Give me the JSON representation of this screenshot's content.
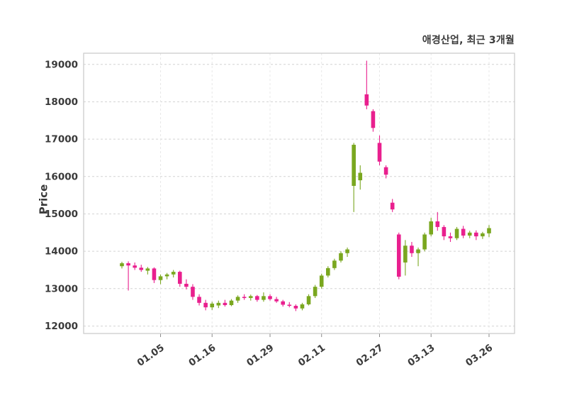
{
  "chart_data": {
    "type": "candlestick",
    "title": "애경산업, 최근 3개월",
    "ylabel": "Price",
    "xlabel": "",
    "ylim": [
      12000,
      19000
    ],
    "grid": "dashed",
    "y_ticks": [
      12000,
      13000,
      14000,
      15000,
      16000,
      17000,
      18000,
      19000
    ],
    "x_ticks": [
      {
        "label": "01.05",
        "index": 6
      },
      {
        "label": "01.16",
        "index": 14
      },
      {
        "label": "01.29",
        "index": 23
      },
      {
        "label": "02.11",
        "index": 31
      },
      {
        "label": "02.27",
        "index": 40
      },
      {
        "label": "03.13",
        "index": 48
      },
      {
        "label": "03.26",
        "index": 57
      }
    ],
    "colors": {
      "up": "#7aa71f",
      "down": "#e91f8e",
      "grid": "#d4d4d4",
      "vgrid": "#e8e8e8",
      "axis_text": "#3a3a3a",
      "border": "#c9c9c9"
    },
    "candles": [
      {
        "date": "12.27",
        "open": 13600,
        "high": 13720,
        "low": 13540,
        "close": 13680
      },
      {
        "date": "12.28",
        "open": 13680,
        "high": 13730,
        "low": 12950,
        "close": 13620
      },
      {
        "date": "12.29",
        "open": 13620,
        "high": 13700,
        "low": 13500,
        "close": 13560
      },
      {
        "date": "01.02",
        "open": 13560,
        "high": 13640,
        "low": 13450,
        "close": 13500
      },
      {
        "date": "01.03",
        "open": 13480,
        "high": 13580,
        "low": 13380,
        "close": 13540
      },
      {
        "date": "01.04",
        "open": 13540,
        "high": 13570,
        "low": 13150,
        "close": 13230
      },
      {
        "date": "01.05",
        "open": 13230,
        "high": 13380,
        "low": 13120,
        "close": 13330
      },
      {
        "date": "01.06",
        "open": 13330,
        "high": 13420,
        "low": 13250,
        "close": 13380
      },
      {
        "date": "01.09",
        "open": 13380,
        "high": 13500,
        "low": 13300,
        "close": 13450
      },
      {
        "date": "01.10",
        "open": 13450,
        "high": 13480,
        "low": 13050,
        "close": 13130
      },
      {
        "date": "01.11",
        "open": 13130,
        "high": 13250,
        "low": 12980,
        "close": 13050
      },
      {
        "date": "01.12",
        "open": 13050,
        "high": 13120,
        "low": 12700,
        "close": 12780
      },
      {
        "date": "01.13",
        "open": 12780,
        "high": 12850,
        "low": 12550,
        "close": 12620
      },
      {
        "date": "01.15",
        "open": 12620,
        "high": 12700,
        "low": 12420,
        "close": 12500
      },
      {
        "date": "01.16",
        "open": 12500,
        "high": 12650,
        "low": 12430,
        "close": 12600
      },
      {
        "date": "01.17",
        "open": 12550,
        "high": 12680,
        "low": 12480,
        "close": 12620
      },
      {
        "date": "01.18",
        "open": 12620,
        "high": 12700,
        "low": 12520,
        "close": 12560
      },
      {
        "date": "01.19",
        "open": 12560,
        "high": 12720,
        "low": 12530,
        "close": 12680
      },
      {
        "date": "01.22",
        "open": 12680,
        "high": 12820,
        "low": 12620,
        "close": 12780
      },
      {
        "date": "01.23",
        "open": 12780,
        "high": 12850,
        "low": 12700,
        "close": 12750
      },
      {
        "date": "01.24",
        "open": 12750,
        "high": 12840,
        "low": 12680,
        "close": 12800
      },
      {
        "date": "01.25",
        "open": 12800,
        "high": 12830,
        "low": 12650,
        "close": 12700
      },
      {
        "date": "01.26",
        "open": 12700,
        "high": 12900,
        "low": 12650,
        "close": 12800
      },
      {
        "date": "01.29",
        "open": 12800,
        "high": 12850,
        "low": 12680,
        "close": 12720
      },
      {
        "date": "01.30",
        "open": 12720,
        "high": 12780,
        "low": 12620,
        "close": 12660
      },
      {
        "date": "01.31",
        "open": 12660,
        "high": 12700,
        "low": 12520,
        "close": 12570
      },
      {
        "date": "02.01",
        "open": 12570,
        "high": 12640,
        "low": 12500,
        "close": 12540
      },
      {
        "date": "02.03",
        "open": 12540,
        "high": 12580,
        "low": 12400,
        "close": 12470
      },
      {
        "date": "02.06",
        "open": 12470,
        "high": 12620,
        "low": 12420,
        "close": 12580
      },
      {
        "date": "02.08",
        "open": 12580,
        "high": 12850,
        "low": 12550,
        "close": 12800
      },
      {
        "date": "02.09",
        "open": 12800,
        "high": 13100,
        "low": 12750,
        "close": 13050
      },
      {
        "date": "02.11",
        "open": 13050,
        "high": 13400,
        "low": 13000,
        "close": 13350
      },
      {
        "date": "02.14",
        "open": 13350,
        "high": 13600,
        "low": 13300,
        "close": 13550
      },
      {
        "date": "02.15",
        "open": 13550,
        "high": 13800,
        "low": 13500,
        "close": 13750
      },
      {
        "date": "02.16",
        "open": 13750,
        "high": 14000,
        "low": 13700,
        "close": 13950
      },
      {
        "date": "02.17",
        "open": 13950,
        "high": 14100,
        "low": 13850,
        "close": 14050
      },
      {
        "date": "02.20",
        "open": 15750,
        "high": 16900,
        "low": 15050,
        "close": 16850
      },
      {
        "date": "02.22",
        "open": 15900,
        "high": 16300,
        "low": 15650,
        "close": 16100
      },
      {
        "date": "02.23",
        "open": 18200,
        "high": 19100,
        "low": 17800,
        "close": 17900
      },
      {
        "date": "02.24",
        "open": 17750,
        "high": 17800,
        "low": 17200,
        "close": 17300
      },
      {
        "date": "02.27",
        "open": 16900,
        "high": 17100,
        "low": 16300,
        "close": 16400
      },
      {
        "date": "02.28",
        "open": 16250,
        "high": 16300,
        "low": 15950,
        "close": 16050
      },
      {
        "date": "03.02",
        "open": 15300,
        "high": 15400,
        "low": 15050,
        "close": 15120
      },
      {
        "date": "03.04",
        "open": 14450,
        "high": 14500,
        "low": 13250,
        "close": 13320
      },
      {
        "date": "03.06",
        "open": 13700,
        "high": 14300,
        "low": 13350,
        "close": 14150
      },
      {
        "date": "03.08",
        "open": 14150,
        "high": 14250,
        "low": 13850,
        "close": 13950
      },
      {
        "date": "03.10",
        "open": 13950,
        "high": 14100,
        "low": 13600,
        "close": 14050
      },
      {
        "date": "03.11",
        "open": 14050,
        "high": 14500,
        "low": 14000,
        "close": 14450
      },
      {
        "date": "03.13",
        "open": 14450,
        "high": 14900,
        "low": 14400,
        "close": 14800
      },
      {
        "date": "03.14",
        "open": 14800,
        "high": 15050,
        "low": 14550,
        "close": 14650
      },
      {
        "date": "03.15",
        "open": 14650,
        "high": 14700,
        "low": 14300,
        "close": 14400
      },
      {
        "date": "03.17",
        "open": 14400,
        "high": 14500,
        "low": 14250,
        "close": 14350
      },
      {
        "date": "03.18",
        "open": 14350,
        "high": 14650,
        "low": 14300,
        "close": 14600
      },
      {
        "date": "03.19",
        "open": 14600,
        "high": 14680,
        "low": 14350,
        "close": 14420
      },
      {
        "date": "03.20",
        "open": 14420,
        "high": 14550,
        "low": 14350,
        "close": 14500
      },
      {
        "date": "03.22",
        "open": 14500,
        "high": 14560,
        "low": 14300,
        "close": 14400
      },
      {
        "date": "03.25",
        "open": 14400,
        "high": 14520,
        "low": 14330,
        "close": 14480
      },
      {
        "date": "03.26",
        "open": 14480,
        "high": 14700,
        "low": 14380,
        "close": 14620
      }
    ]
  }
}
